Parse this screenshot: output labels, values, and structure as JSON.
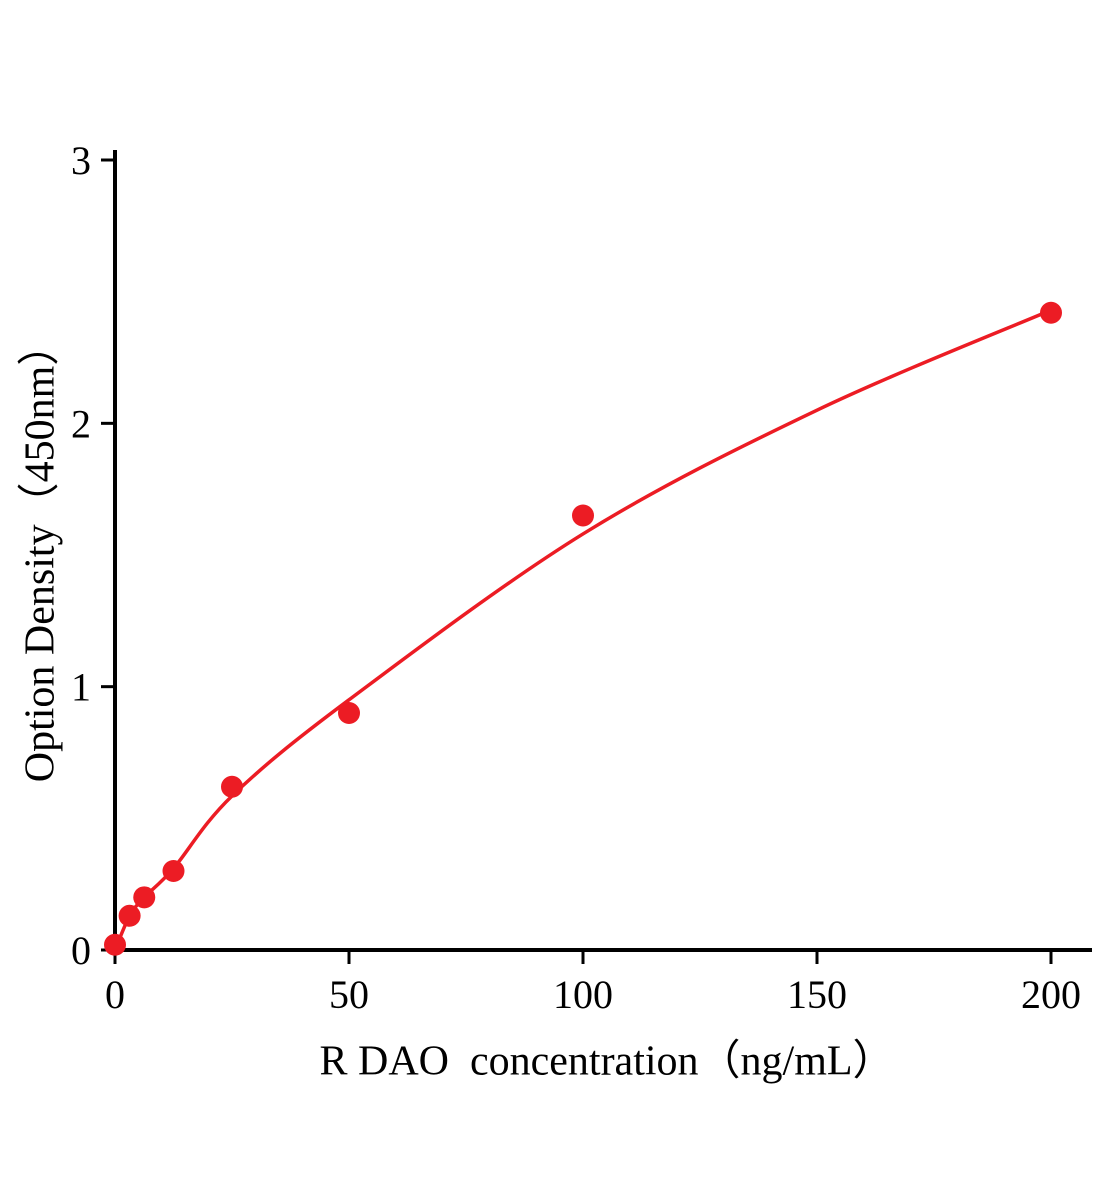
{
  "page": {
    "background": "#ffffff"
  },
  "chart_data": {
    "type": "scatter",
    "title": "",
    "xlabel": "R DAO  concentration（ng/mL）",
    "ylabel": "Option Density（450nm）",
    "xlim": [
      0,
      200
    ],
    "ylim": [
      0,
      3
    ],
    "x_ticks": [
      0,
      50,
      100,
      150,
      200
    ],
    "y_ticks": [
      0,
      1,
      2,
      3
    ],
    "grid": false,
    "legend": null,
    "points": [
      {
        "x": 0,
        "y": 0.02
      },
      {
        "x": 3.125,
        "y": 0.13
      },
      {
        "x": 6.25,
        "y": 0.2
      },
      {
        "x": 12.5,
        "y": 0.3
      },
      {
        "x": 25,
        "y": 0.62
      },
      {
        "x": 50,
        "y": 0.9
      },
      {
        "x": 100,
        "y": 1.65
      },
      {
        "x": 200,
        "y": 2.42
      }
    ],
    "fit_curve": [
      {
        "x": 0,
        "y": 0.0
      },
      {
        "x": 3.125,
        "y": 0.13
      },
      {
        "x": 6.25,
        "y": 0.2
      },
      {
        "x": 12.5,
        "y": 0.31
      },
      {
        "x": 25,
        "y": 0.585
      },
      {
        "x": 50,
        "y": 0.95
      },
      {
        "x": 100,
        "y": 1.58
      },
      {
        "x": 150,
        "y": 2.05
      },
      {
        "x": 200,
        "y": 2.43
      }
    ],
    "marker_color": "#ec1c24",
    "line_color": "#ec1c24",
    "axis_color": "#000000",
    "marker_radius": 11,
    "line_width": 3.5
  }
}
